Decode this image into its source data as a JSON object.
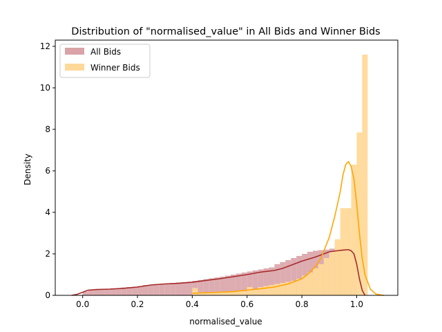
{
  "chart_data": {
    "type": "histogram+kde",
    "title": "Distribution of \"normalised_value\" in All Bids and Winner Bids",
    "xlabel": "normalised_value",
    "ylabel": "Density",
    "xlim": [
      -0.1,
      1.15
    ],
    "ylim": [
      0,
      12.3
    ],
    "xticks": [
      "0.0",
      "0.2",
      "0.4",
      "0.6",
      "0.8",
      "1.0"
    ],
    "yticks": [
      "0",
      "2",
      "4",
      "6",
      "8",
      "10",
      "12"
    ],
    "grid": false,
    "legend_position": "upper-left",
    "bin_width": 0.02,
    "series": [
      {
        "name": "All Bids",
        "hist_color": "#d9a3a8",
        "line_color": "#a52a2a",
        "bin_start": 0.0,
        "bin_heights": [
          0.18,
          0.26,
          0.28,
          0.28,
          0.3,
          0.34,
          0.34,
          0.38,
          0.4,
          0.42,
          0.45,
          0.5,
          0.52,
          0.55,
          0.56,
          0.58,
          0.6,
          0.62,
          0.64,
          0.66,
          0.7,
          0.74,
          0.78,
          0.82,
          0.86,
          0.9,
          0.95,
          1.0,
          1.05,
          1.1,
          1.15,
          1.2,
          1.25,
          1.3,
          1.35,
          1.5,
          1.6,
          1.7,
          1.8,
          1.9,
          2.0,
          2.1,
          2.15,
          2.18,
          2.2,
          2.25,
          2.28,
          2.28,
          2.2,
          2.0
        ],
        "kde_x": [
          -0.04,
          -0.02,
          0.0,
          0.02,
          0.05,
          0.1,
          0.15,
          0.2,
          0.25,
          0.3,
          0.35,
          0.4,
          0.45,
          0.5,
          0.55,
          0.6,
          0.65,
          0.7,
          0.73,
          0.75,
          0.8,
          0.85,
          0.88,
          0.9,
          0.93,
          0.95,
          0.97,
          0.98,
          0.99,
          1.0,
          1.01,
          1.02,
          1.03
        ],
        "kde_y": [
          0.0,
          0.05,
          0.15,
          0.25,
          0.28,
          0.3,
          0.34,
          0.4,
          0.5,
          0.55,
          0.58,
          0.63,
          0.72,
          0.8,
          0.9,
          1.0,
          1.12,
          1.2,
          1.3,
          1.4,
          1.65,
          1.85,
          2.0,
          2.1,
          2.15,
          2.18,
          2.2,
          2.15,
          2.0,
          1.5,
          0.8,
          0.25,
          0.0
        ]
      },
      {
        "name": "Winner Bids",
        "hist_color": "#ffd999",
        "line_color": "#ffa500",
        "bin_start": 0.4,
        "bin_heights": [
          0.35,
          0.15,
          0.1,
          0.15,
          0.15,
          0.15,
          0.15,
          0.2,
          0.2,
          0.2,
          0.4,
          0.3,
          0.4,
          0.45,
          0.5,
          0.55,
          0.6,
          0.65,
          0.7,
          0.8,
          0.95,
          1.1,
          1.3,
          1.5,
          1.8,
          2.1,
          2.7,
          4.2,
          4.2,
          6.3,
          7.85,
          11.6
        ],
        "kde_x": [
          0.4,
          0.5,
          0.55,
          0.6,
          0.65,
          0.7,
          0.75,
          0.8,
          0.82,
          0.85,
          0.87,
          0.9,
          0.92,
          0.94,
          0.95,
          0.96,
          0.97,
          0.98,
          0.99,
          1.0,
          1.01,
          1.02,
          1.03,
          1.05,
          1.07,
          1.1
        ],
        "kde_y": [
          0.1,
          0.15,
          0.18,
          0.25,
          0.32,
          0.4,
          0.55,
          0.8,
          1.0,
          1.4,
          1.8,
          2.8,
          3.8,
          5.0,
          5.8,
          6.3,
          6.45,
          6.2,
          5.6,
          4.4,
          3.0,
          1.8,
          1.0,
          0.3,
          0.06,
          0.0
        ]
      }
    ]
  }
}
